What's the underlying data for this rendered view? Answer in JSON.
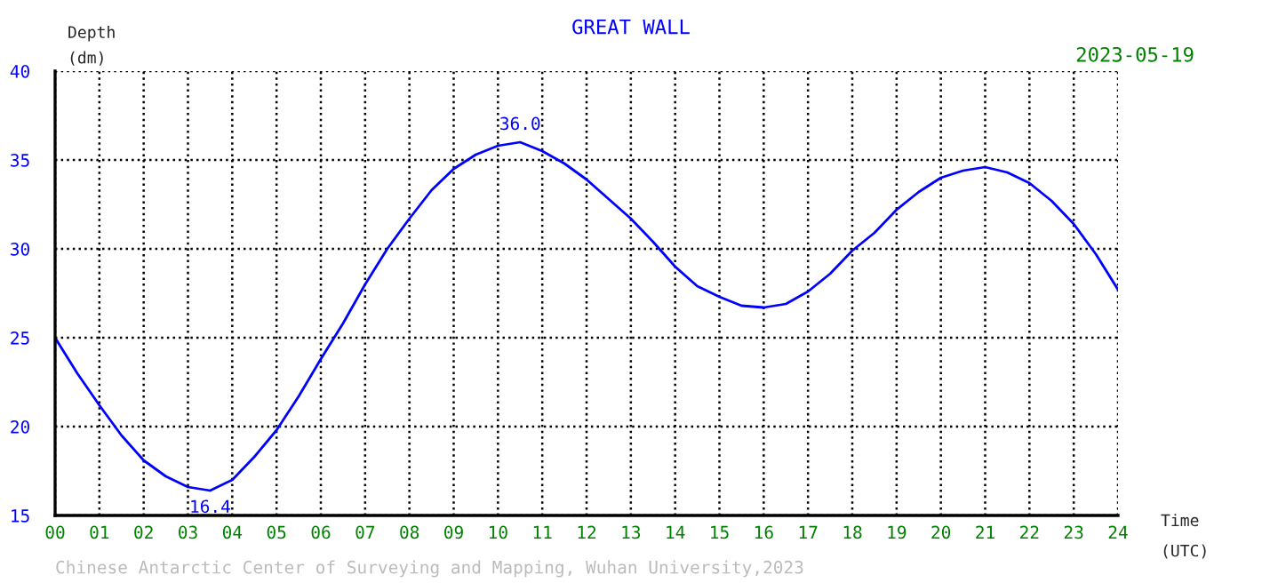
{
  "chart_data": {
    "type": "line",
    "title": "GREAT WALL",
    "subtitle": "2023-05-19",
    "xlabel": "Time\n(UTC)",
    "ylabel": "Depth\n(dm)",
    "x": [
      0,
      0.5,
      1,
      1.5,
      2,
      2.5,
      3,
      3.5,
      4,
      4.5,
      5,
      5.5,
      6,
      6.5,
      7,
      7.5,
      8,
      8.5,
      9,
      9.5,
      10,
      10.5,
      11,
      11.5,
      12,
      12.5,
      13,
      13.5,
      14,
      14.5,
      15,
      15.5,
      16,
      16.5,
      17,
      17.5,
      18,
      18.5,
      19,
      19.5,
      20,
      20.5,
      21,
      21.5,
      22,
      22.5,
      23,
      23.5,
      24
    ],
    "series": [
      {
        "color": "#0000ff",
        "values": [
          25.0,
          23.0,
          21.2,
          19.5,
          18.1,
          17.2,
          16.6,
          16.4,
          17.0,
          18.3,
          19.8,
          21.7,
          23.8,
          25.8,
          28.0,
          30.0,
          31.7,
          33.3,
          34.5,
          35.3,
          35.8,
          36.0,
          35.5,
          34.8,
          33.9,
          32.8,
          31.7,
          30.4,
          29.0,
          27.9,
          27.3,
          26.8,
          26.7,
          26.9,
          27.6,
          28.6,
          29.9,
          30.9,
          32.2,
          33.2,
          34.0,
          34.4,
          34.6,
          34.3,
          33.7,
          32.7,
          31.4,
          29.7,
          27.7
        ]
      }
    ],
    "xlim": [
      0,
      24
    ],
    "ylim": [
      15,
      40
    ],
    "xticks": [
      {
        "value": 0,
        "label": "00"
      },
      {
        "value": 1,
        "label": "01"
      },
      {
        "value": 2,
        "label": "02"
      },
      {
        "value": 3,
        "label": "03"
      },
      {
        "value": 4,
        "label": "04"
      },
      {
        "value": 5,
        "label": "05"
      },
      {
        "value": 6,
        "label": "06"
      },
      {
        "value": 7,
        "label": "07"
      },
      {
        "value": 8,
        "label": "08"
      },
      {
        "value": 9,
        "label": "09"
      },
      10,
      11,
      12,
      13,
      14,
      15,
      16,
      17,
      18,
      19,
      20,
      21,
      22,
      23,
      24
    ],
    "yticks": [
      15,
      20,
      25,
      30,
      35,
      40
    ],
    "grid": true,
    "line_style": "solid",
    "marker": "none",
    "legend": false,
    "annotations": [
      {
        "text": "16.4",
        "x": 3.5,
        "y": 16.4
      },
      {
        "text": "36.0",
        "x": 10.5,
        "y": 36.0
      },
      "Chinese Antarctic Center of Surveying and Mapping, Wuhan University,2023"
    ]
  }
}
